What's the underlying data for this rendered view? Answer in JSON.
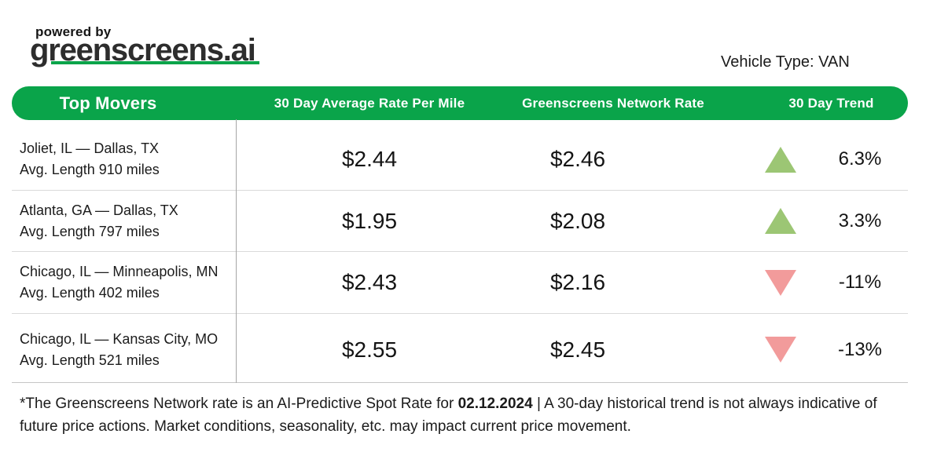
{
  "colors": {
    "brand_green": "#0AA44A",
    "trend_up": "#9CC674",
    "trend_down": "#F29B9B"
  },
  "branding": {
    "powered_by": "powered by",
    "brand_name": "greenscreens.ai"
  },
  "vehicle_type_label": "Vehicle Type: VAN",
  "table": {
    "columns": [
      "Top Movers",
      "30 Day Average Rate Per Mile",
      "Greenscreens Network Rate",
      "30 Day Trend"
    ],
    "rows": [
      {
        "lane": "Joliet, IL — Dallas, TX",
        "avg_length": "Avg. Length 910 miles",
        "avg_rate": "$2.44",
        "network_rate": "$2.46",
        "trend_direction": "up",
        "trend_value": "6.3%"
      },
      {
        "lane": "Atlanta, GA — Dallas, TX",
        "avg_length": "Avg. Length 797 miles",
        "avg_rate": "$1.95",
        "network_rate": "$2.08",
        "trend_direction": "up",
        "trend_value": "3.3%"
      },
      {
        "lane": "Chicago, IL — Minneapolis, MN",
        "avg_length": "Avg. Length 402 miles",
        "avg_rate": "$2.43",
        "network_rate": "$2.16",
        "trend_direction": "down",
        "trend_value": "-11%"
      },
      {
        "lane": "Chicago, IL — Kansas City, MO",
        "avg_length": "Avg. Length 521 miles",
        "avg_rate": "$2.55",
        "network_rate": "$2.45",
        "trend_direction": "down",
        "trend_value": "-13%"
      }
    ]
  },
  "footnote": {
    "prefix": "*The Greenscreens Network rate is an AI-Predictive Spot Rate for ",
    "date": "02.12.2024",
    "suffix": " | A 30-day historical trend is not always indicative of future price actions. Market conditions, seasonality, etc. may impact current price movement."
  }
}
